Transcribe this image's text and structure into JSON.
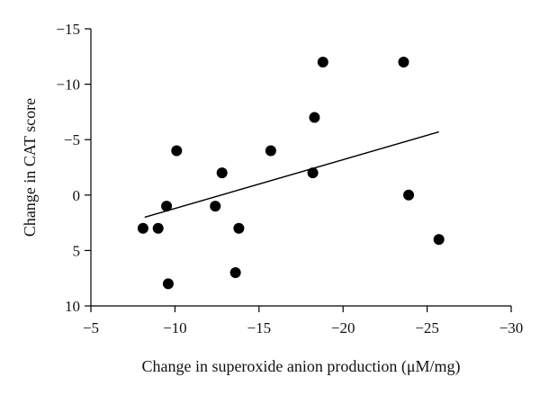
{
  "chart_data": {
    "type": "scatter",
    "title": "",
    "xlabel": "Change in superoxide anion production (μM/mg)",
    "ylabel": "Change in CAT score",
    "xlim": [
      -5,
      -30
    ],
    "ylim": [
      10,
      -15
    ],
    "x_reversed": true,
    "y_reversed": true,
    "x_ticks": [
      -5,
      -10,
      -15,
      -20,
      -25,
      -30
    ],
    "x_tick_labels": [
      "−5",
      "−10",
      "−15",
      "−20",
      "−25",
      "−30"
    ],
    "y_ticks": [
      -15,
      -10,
      -5,
      0,
      5,
      10
    ],
    "y_tick_labels": [
      "−15",
      "−10",
      "−5",
      "0",
      "5",
      "10"
    ],
    "grid": false,
    "series": [
      {
        "name": "subjects",
        "points": [
          {
            "x": -8.1,
            "y": 3
          },
          {
            "x": -9.0,
            "y": 3
          },
          {
            "x": -9.5,
            "y": 1
          },
          {
            "x": -9.6,
            "y": 8
          },
          {
            "x": -10.1,
            "y": -4
          },
          {
            "x": -12.4,
            "y": 1
          },
          {
            "x": -12.8,
            "y": -2
          },
          {
            "x": -13.6,
            "y": 7
          },
          {
            "x": -13.8,
            "y": 3
          },
          {
            "x": -15.7,
            "y": -4
          },
          {
            "x": -18.2,
            "y": -2
          },
          {
            "x": -18.3,
            "y": -7
          },
          {
            "x": -18.8,
            "y": -12
          },
          {
            "x": -23.6,
            "y": -12
          },
          {
            "x": -23.9,
            "y": 0
          },
          {
            "x": -25.7,
            "y": 4
          }
        ]
      }
    ],
    "trendline": {
      "x1": -8.2,
      "y1": 2.0,
      "x2": -25.7,
      "y2": -5.7
    }
  }
}
